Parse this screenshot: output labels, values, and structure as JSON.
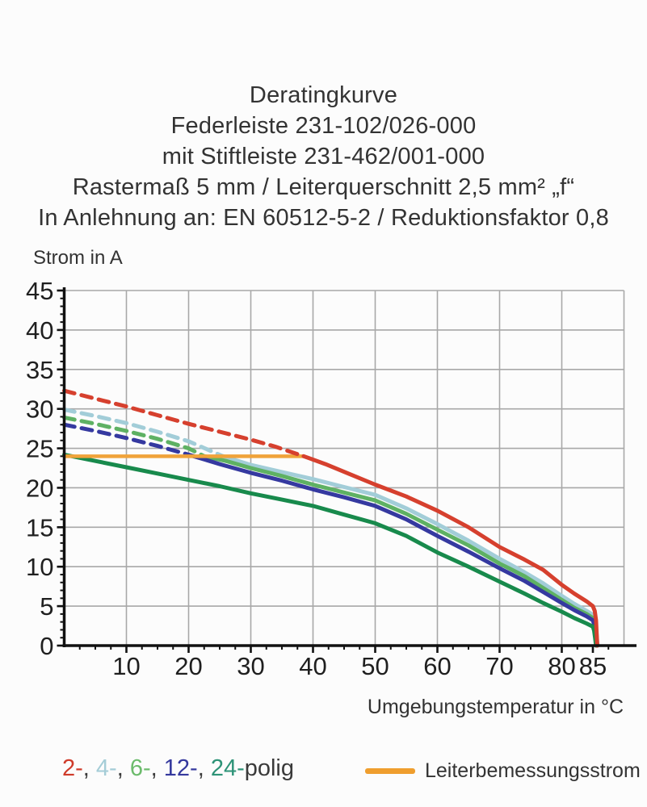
{
  "title": {
    "lines": [
      "Deratingkurve",
      "Federleiste 231-102/026-000",
      "mit Stiftleiste 231-462/001-000",
      "Rastermaß 5 mm / Leiterquerschnitt 2,5 mm² „f“",
      "In Anlehnung an: EN 60512-5-2 / Reduktionsfaktor 0,8"
    ]
  },
  "chart_data": {
    "type": "line",
    "title": "Deratingkurve",
    "xlabel": "Umgebungstemperatur in °C",
    "ylabel": "Strom in A",
    "xlim": [
      0,
      90
    ],
    "ylim": [
      0,
      45
    ],
    "x_major_ticks": [
      10,
      20,
      30,
      40,
      50,
      60,
      70,
      80,
      85
    ],
    "x_tick_labels": [
      "10",
      "20",
      "30",
      "40",
      "50",
      "60",
      "70",
      "80",
      "85"
    ],
    "x_minor_step": 2.5,
    "y_major_ticks": [
      0,
      5,
      10,
      15,
      20,
      25,
      30,
      35,
      40,
      45
    ],
    "y_tick_labels": [
      "0",
      "5",
      "10",
      "15",
      "20",
      "25",
      "30",
      "35",
      "40",
      "45"
    ],
    "y_minor_step": 1,
    "grid": {
      "x_lines": [
        10,
        20,
        30,
        40,
        50,
        60,
        70,
        80,
        90
      ],
      "y_lines": [
        5,
        10,
        15,
        20,
        25,
        30,
        35,
        40,
        45
      ],
      "color": "#a8a8a8"
    },
    "rated_line": {
      "name": "Leiterbemessungsstrom",
      "value": 24,
      "x_start": 0,
      "x_end": 38.5,
      "color": "#f0a33a"
    },
    "series": [
      {
        "name": "2-polig",
        "color": "#d6402e",
        "dashed_points": [
          [
            0,
            32.3
          ],
          [
            5,
            31.3
          ],
          [
            10,
            30.3
          ],
          [
            15,
            29.2
          ],
          [
            20,
            28.1
          ],
          [
            25,
            27.1
          ],
          [
            30,
            26.1
          ],
          [
            34,
            25.2
          ],
          [
            38.5,
            24
          ]
        ],
        "solid_points": [
          [
            38.5,
            24
          ],
          [
            42,
            23
          ],
          [
            46,
            21.7
          ],
          [
            50,
            20.4
          ],
          [
            55,
            18.9
          ],
          [
            60,
            17.1
          ],
          [
            65,
            15
          ],
          [
            70,
            12.5
          ],
          [
            74,
            10.9
          ],
          [
            77,
            9.6
          ],
          [
            80,
            7.7
          ],
          [
            82,
            6.6
          ],
          [
            84,
            5.6
          ],
          [
            85,
            5
          ],
          [
            85.3,
            4.4
          ],
          [
            85.5,
            3.2
          ],
          [
            85.7,
            0
          ]
        ]
      },
      {
        "name": "4-polig",
        "color": "#a2cdd8",
        "dashed_points": [
          [
            0,
            29.9
          ],
          [
            5,
            29.1
          ],
          [
            10,
            28.2
          ],
          [
            15,
            27.1
          ],
          [
            20,
            25.9
          ],
          [
            25.5,
            24
          ]
        ],
        "solid_points": [
          [
            25.5,
            24
          ],
          [
            30,
            22.9
          ],
          [
            35,
            22
          ],
          [
            40,
            21.1
          ],
          [
            45,
            20.1
          ],
          [
            50,
            19.1
          ],
          [
            55,
            17.4
          ],
          [
            60,
            15.4
          ],
          [
            65,
            13.3
          ],
          [
            70,
            11
          ],
          [
            74,
            9.3
          ],
          [
            77,
            7.9
          ],
          [
            80,
            6.3
          ],
          [
            82,
            5.3
          ],
          [
            84,
            4.4
          ],
          [
            85,
            3.9
          ],
          [
            85.3,
            3.3
          ],
          [
            85.5,
            2.2
          ],
          [
            85.75,
            0
          ]
        ]
      },
      {
        "name": "6-polig",
        "color": "#5eb163",
        "dashed_points": [
          [
            0,
            28.9
          ],
          [
            5,
            28.1
          ],
          [
            10,
            27.2
          ],
          [
            15,
            26.2
          ],
          [
            20,
            25
          ],
          [
            22.5,
            24
          ]
        ],
        "solid_points": [
          [
            22.5,
            24
          ],
          [
            26,
            23.4
          ],
          [
            30,
            22.5
          ],
          [
            35,
            21.5
          ],
          [
            40,
            20.4
          ],
          [
            45,
            19.4
          ],
          [
            50,
            18.4
          ],
          [
            55,
            16.7
          ],
          [
            60,
            14.7
          ],
          [
            65,
            12.7
          ],
          [
            70,
            10.4
          ],
          [
            74,
            8.8
          ],
          [
            77,
            7.3
          ],
          [
            80,
            5.8
          ],
          [
            82,
            4.8
          ],
          [
            84,
            4
          ],
          [
            85,
            3.5
          ],
          [
            85.3,
            2.9
          ],
          [
            85.5,
            1.8
          ],
          [
            85.7,
            0
          ]
        ]
      },
      {
        "name": "12-polig",
        "color": "#3539a0",
        "dashed_points": [
          [
            0,
            28
          ],
          [
            5,
            27.2
          ],
          [
            10,
            26.3
          ],
          [
            15,
            25.3
          ],
          [
            20,
            24.2
          ],
          [
            20.8,
            24
          ]
        ],
        "solid_points": [
          [
            20.8,
            24
          ],
          [
            25,
            23
          ],
          [
            30,
            21.9
          ],
          [
            35,
            20.9
          ],
          [
            40,
            19.8
          ],
          [
            45,
            18.8
          ],
          [
            50,
            17.7
          ],
          [
            55,
            16
          ],
          [
            60,
            13.9
          ],
          [
            65,
            11.9
          ],
          [
            70,
            9.8
          ],
          [
            74,
            8.2
          ],
          [
            77,
            6.8
          ],
          [
            80,
            5.4
          ],
          [
            82,
            4.5
          ],
          [
            84,
            3.7
          ],
          [
            85,
            3.2
          ],
          [
            85.2,
            2.7
          ],
          [
            85.4,
            1.6
          ],
          [
            85.6,
            0
          ]
        ]
      },
      {
        "name": "24-polig",
        "color": "#188a4c",
        "dashed_points": [],
        "solid_points": [
          [
            0,
            24.2
          ],
          [
            5,
            23.4
          ],
          [
            10,
            22.6
          ],
          [
            15,
            21.8
          ],
          [
            20,
            21
          ],
          [
            25,
            20.2
          ],
          [
            30,
            19.3
          ],
          [
            35,
            18.5
          ],
          [
            40,
            17.7
          ],
          [
            45,
            16.6
          ],
          [
            50,
            15.5
          ],
          [
            55,
            13.9
          ],
          [
            60,
            11.8
          ],
          [
            65,
            10
          ],
          [
            70,
            8.1
          ],
          [
            74,
            6.6
          ],
          [
            77,
            5.4
          ],
          [
            80,
            4.3
          ],
          [
            82,
            3.5
          ],
          [
            84,
            2.8
          ],
          [
            85,
            2.4
          ],
          [
            85.2,
            1.9
          ],
          [
            85.35,
            1
          ],
          [
            85.5,
            0
          ]
        ]
      }
    ]
  },
  "legend": {
    "poles": [
      {
        "label": "2-",
        "color": "#cf3b2a"
      },
      {
        "label": "4-",
        "color": "#a5cdd7"
      },
      {
        "label": "6-",
        "color": "#6cbb6c"
      },
      {
        "label": "12-",
        "color": "#34389d"
      },
      {
        "label": "24-",
        "color": "#2d9377"
      }
    ],
    "separator": ", ",
    "suffix": "polig",
    "suffix_color": "#3a3a3a",
    "rated_label": "Leiterbemessungsstrom",
    "rated_color": "#ef9e2e"
  }
}
